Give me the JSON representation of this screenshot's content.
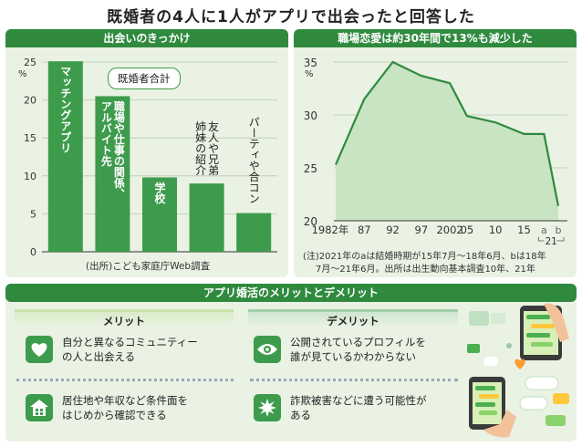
{
  "title": "既婚者の4人に1人がアプリで出会ったと回答した",
  "left_panel": {
    "header": "出会いのきっかけ",
    "legend": "既婚者合計",
    "unit": "%",
    "source": "(出所)こども家庭庁Web調査"
  },
  "right_panel": {
    "header": "職場恋愛は約30年間で13%も減少した",
    "unit": "%",
    "bracket_label": "21",
    "note_line1": "(注)2021年のaは結婚時期が15年7月～18年6月、bは18年",
    "note_line2": "7月～21年6月。出所は出生動向基本調査10年、21年"
  },
  "bottom_panel": {
    "header": "アプリ婚活のメリットとデメリット",
    "merit_title": "メリット",
    "demerit_title": "デメリット",
    "merits": [
      {
        "icon": "heart-icon",
        "text": [
          "自分と異なるコミュニティー",
          "の人と出会える"
        ]
      },
      {
        "icon": "house-icon",
        "text": [
          "居住地や年収など条件面を",
          "はじめから確認できる"
        ]
      }
    ],
    "demerits": [
      {
        "icon": "eye-icon",
        "text": [
          "公開されているプロフィルを",
          "誰が見ているかわからない"
        ]
      },
      {
        "icon": "burst-icon",
        "text": [
          "詐欺被害などに遭う可能性が",
          "ある"
        ]
      }
    ]
  },
  "colors": {
    "accent": "#2f8a3e",
    "bar": "#3d9b4c",
    "panel": "#eaf2e4",
    "area": "#c5e2bf"
  },
  "chart_data": [
    {
      "type": "bar",
      "title": "出会いのきっかけ",
      "ylabel": "%",
      "ylim": [
        0,
        25
      ],
      "yticks": [
        "0",
        "5",
        "10",
        "15",
        "20",
        "25"
      ],
      "categories": [
        "マッチングアプリ",
        "職場や仕事の関係、アルバイト先",
        "学校",
        "友人や兄弟姉妹の紹介",
        "パーティや合コン"
      ],
      "category_lines": [
        [
          "マッチングアプリ"
        ],
        [
          "職場や仕事の関係、",
          "アルバイト先"
        ],
        [
          "学校"
        ],
        [
          "友人や兄弟",
          "姉妹の紹介"
        ],
        [
          "パーティや合コン"
        ]
      ],
      "label_inside": [
        true,
        true,
        true,
        false,
        false
      ],
      "values": [
        25.1,
        20.5,
        9.8,
        9.0,
        5.1
      ]
    },
    {
      "type": "area",
      "title": "職場恋愛は約30年間で13%も減少した",
      "ylabel": "%",
      "ylim": [
        20,
        35
      ],
      "yticks": [
        "20",
        "25",
        "30",
        "35"
      ],
      "x": [
        1982,
        1987,
        1992,
        1997,
        2002,
        2005,
        2010,
        2015,
        2018.5,
        2021
      ],
      "x_labels": [
        "1982年",
        "87",
        "92",
        "97",
        "2002",
        "05",
        "10",
        "15",
        "a",
        "b"
      ],
      "values": [
        25.3,
        31.5,
        35.0,
        33.7,
        33.0,
        29.9,
        29.3,
        28.2,
        28.2,
        21.4
      ]
    }
  ]
}
